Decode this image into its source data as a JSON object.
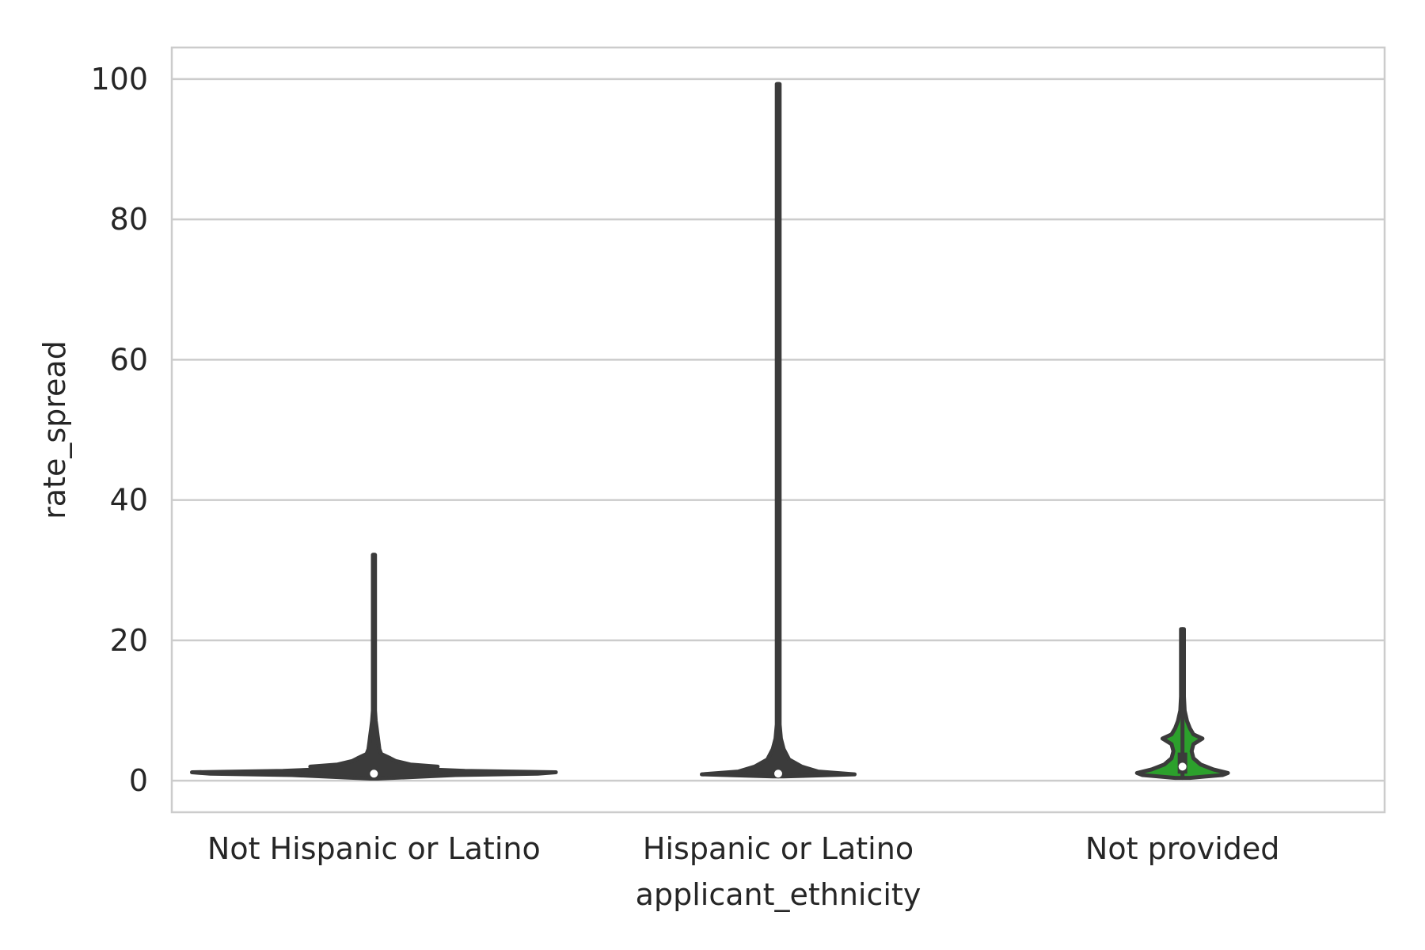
{
  "chart_data": {
    "type": "violin",
    "title": "",
    "xlabel": "applicant_ethnicity",
    "ylabel": "rate_spread",
    "categories": [
      "Not Hispanic or Latino",
      "Hispanic or Latino",
      "Not provided"
    ],
    "ylim": [
      -4.5,
      104.5
    ],
    "yticks": [
      0,
      20,
      40,
      60,
      80,
      100
    ],
    "grid": true,
    "legend": "none",
    "colors": {
      "line": "#3b3b3b",
      "grid": "#cccccc",
      "frame": "#cccccc",
      "median_marker": "#ffffff",
      "not_hispanic_fill": "#3b3b3b",
      "hispanic_fill": "#3b3b3b",
      "not_provided_fill": "#2ca02c"
    },
    "series": [
      {
        "category": "Not Hispanic or Latino",
        "min": 0.3,
        "max": 32.2,
        "median": 1.0,
        "q1": 0.8,
        "q3": 1.4,
        "profile": [
          [
            0.3,
            0.02
          ],
          [
            0.8,
            0.45
          ],
          [
            1.0,
            0.9
          ],
          [
            1.2,
            1.0
          ],
          [
            1.4,
            0.5
          ],
          [
            1.6,
            0.3
          ],
          [
            2.0,
            0.35
          ],
          [
            2.3,
            0.2
          ],
          [
            2.8,
            0.12
          ],
          [
            3.2,
            0.09
          ],
          [
            3.8,
            0.04
          ],
          [
            4.5,
            0.03
          ],
          [
            5.5,
            0.025
          ],
          [
            6.5,
            0.02
          ],
          [
            7.5,
            0.015
          ],
          [
            8.5,
            0.01
          ],
          [
            10,
            0.006
          ],
          [
            32.2,
            0.006
          ]
        ]
      },
      {
        "category": "Hispanic or Latino",
        "min": 0.6,
        "max": 99.3,
        "median": 1.0,
        "q1": 0.8,
        "q3": 1.8,
        "profile": [
          [
            0.6,
            0.03
          ],
          [
            0.9,
            0.42
          ],
          [
            1.3,
            0.22
          ],
          [
            2.0,
            0.13
          ],
          [
            3.0,
            0.06
          ],
          [
            4.5,
            0.03
          ],
          [
            6.0,
            0.015
          ],
          [
            8.0,
            0.008
          ],
          [
            99.3,
            0.008
          ]
        ]
      },
      {
        "category": "Not provided",
        "min": 0.4,
        "max": 21.6,
        "median": 2.0,
        "q1": 1.0,
        "q3": 4.0,
        "profile": [
          [
            0.4,
            0.04
          ],
          [
            0.8,
            0.22
          ],
          [
            1.1,
            0.25
          ],
          [
            1.6,
            0.17
          ],
          [
            2.3,
            0.1
          ],
          [
            3.2,
            0.06
          ],
          [
            4.2,
            0.05
          ],
          [
            5.2,
            0.06
          ],
          [
            6.0,
            0.11
          ],
          [
            6.6,
            0.06
          ],
          [
            7.5,
            0.04
          ],
          [
            8.5,
            0.025
          ],
          [
            10,
            0.012
          ],
          [
            12,
            0.008
          ],
          [
            21.6,
            0.008
          ]
        ]
      }
    ]
  }
}
